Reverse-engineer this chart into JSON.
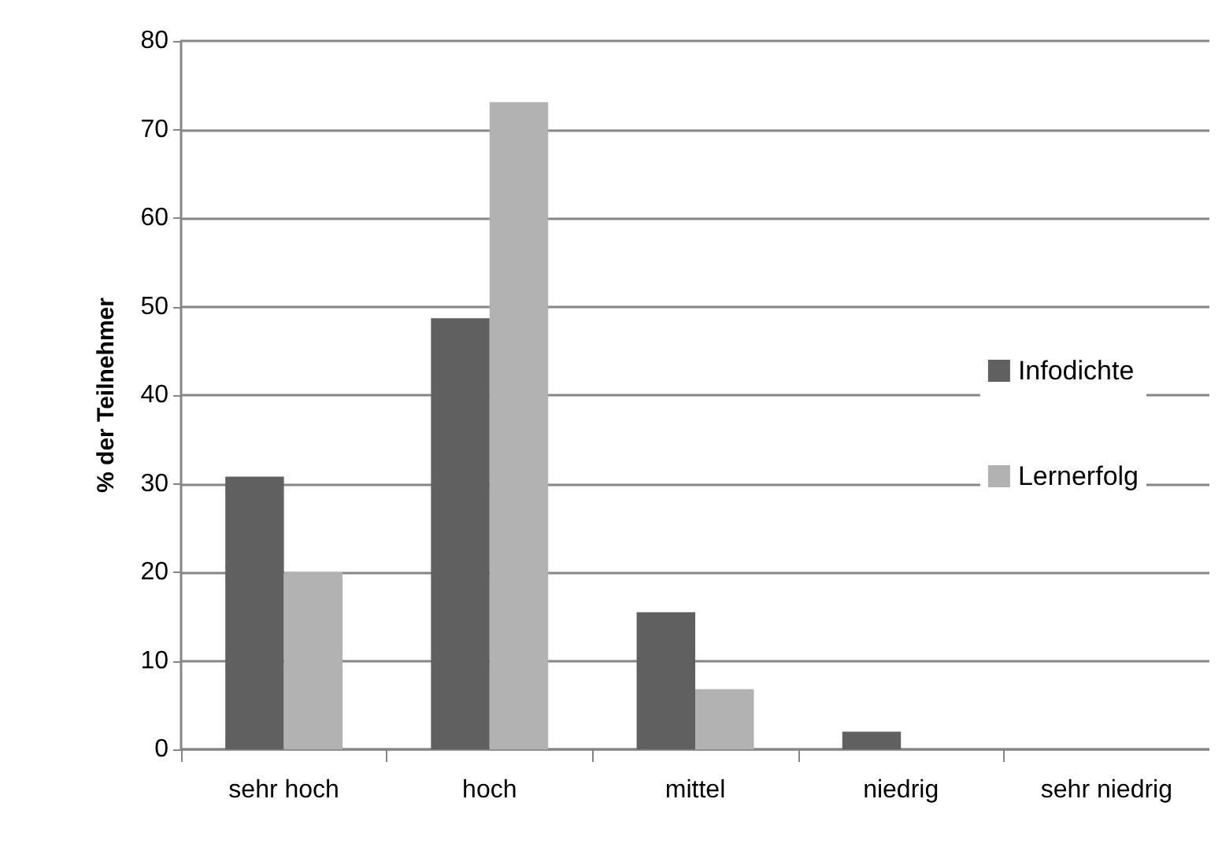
{
  "chart_data": {
    "type": "bar",
    "ylabel": "% der Teilnehmer",
    "categories": [
      "sehr hoch",
      "hoch",
      "mittel",
      "niedrig",
      "sehr niedrig"
    ],
    "series": [
      {
        "name": "Infodichte",
        "color": "#606060",
        "values": [
          30.8,
          48.7,
          15.5,
          2,
          0
        ]
      },
      {
        "name": "Lernerfolg",
        "color": "#b2b2b2",
        "values": [
          20,
          73.1,
          6.8,
          0,
          0
        ]
      }
    ],
    "ylim": [
      0,
      80
    ],
    "yticks": [
      0,
      10,
      20,
      30,
      40,
      50,
      60,
      70,
      80
    ],
    "grid": "y",
    "legend": "right"
  }
}
